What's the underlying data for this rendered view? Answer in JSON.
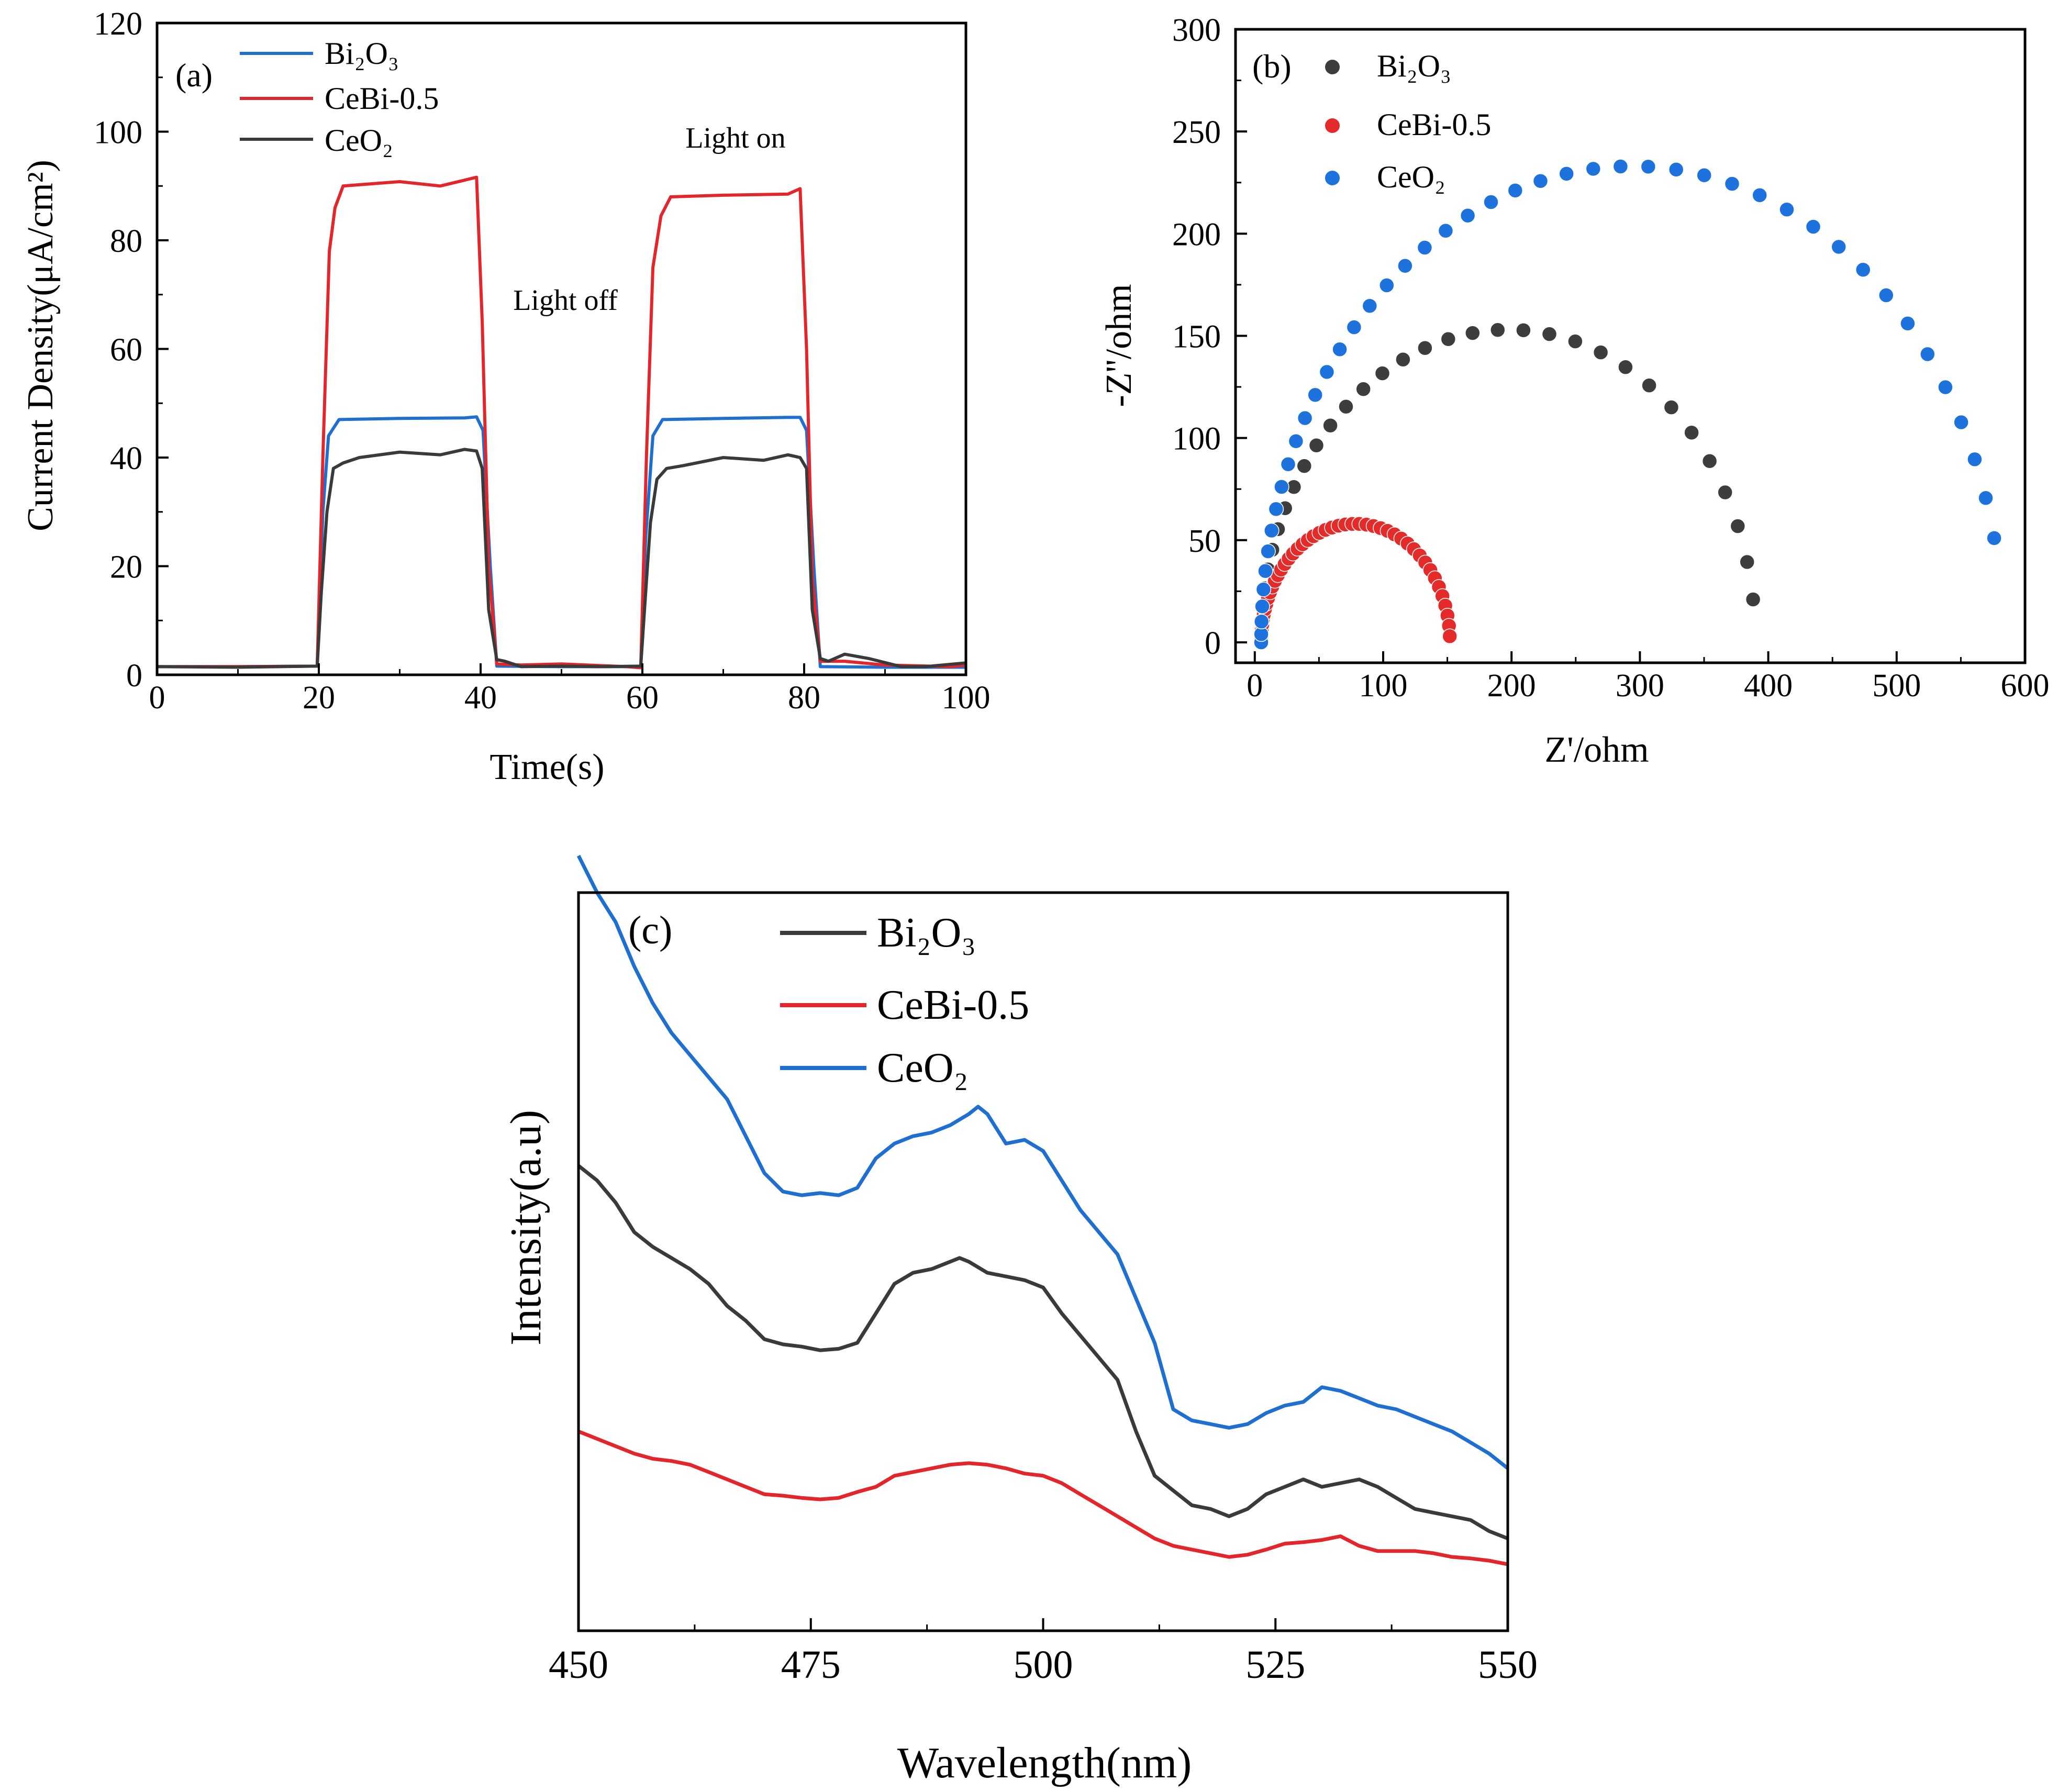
{
  "colors": {
    "bi2o3_line": "#1f6fd1",
    "cebi_line": "#e3262b",
    "ceo2_line": "#3a3a3a",
    "bi2o3_marker": "#3d3d3d",
    "cebi_marker": "#e52a2a",
    "ceo2_marker": "#1e72dd"
  },
  "chart_data": [
    {
      "type": "line",
      "panel_label": "(a)",
      "xlabel": "Time(s)",
      "ylabel": "Current Density(μA/cm²)",
      "xlim": [
        0,
        100
      ],
      "ylim": [
        0,
        120
      ],
      "xticks": [
        "0",
        "20",
        "40",
        "60",
        "80",
        "100"
      ],
      "yticks": [
        "0",
        "20",
        "40",
        "60",
        "80",
        "100",
        "120"
      ],
      "legend": [
        "Bi₂O₃",
        "CeBi-0.5",
        "CeO₂"
      ],
      "legend_position": "top-left",
      "annotations": {
        "light_on": "Light on",
        "light_off": "Light off"
      },
      "series": [
        {
          "name": "Bi₂O₃",
          "color": "#1f6fd1",
          "x": [
            0,
            10,
            19.8,
            20.5,
            21.2,
            22.5,
            30,
            38,
            39.5,
            40.3,
            41.2,
            42,
            50,
            59.8,
            60.4,
            61.3,
            62.5,
            70,
            78,
            79.5,
            80.3,
            81.2,
            82,
            90,
            100
          ],
          "y": [
            1.5,
            1.5,
            1.6,
            30,
            44,
            47,
            47.2,
            47.3,
            47.5,
            45,
            20,
            1.6,
            1.5,
            1.5,
            25,
            44,
            47,
            47.2,
            47.4,
            47.4,
            45,
            20,
            1.5,
            1.4,
            1.4
          ]
        },
        {
          "name": "CeBi-0.5",
          "color": "#e3262b",
          "x": [
            0,
            10,
            19.8,
            20.5,
            21.3,
            22,
            23,
            30,
            35,
            39.5,
            40.2,
            41,
            42,
            45,
            50,
            58,
            59.8,
            60.5,
            61.3,
            62.3,
            63.5,
            70,
            78,
            79.5,
            80.3,
            81,
            82,
            85,
            90,
            98,
            100
          ],
          "y": [
            1.5,
            1.5,
            1.6,
            40,
            78,
            86,
            90,
            90.8,
            90,
            91.6,
            65,
            20,
            2.0,
            1.8,
            2.0,
            1.5,
            1.3,
            40,
            75,
            84.5,
            88,
            88.3,
            88.5,
            89.5,
            60,
            18,
            2.5,
            2.5,
            1.8,
            1.5,
            1.8
          ]
        },
        {
          "name": "CeO₂",
          "color": "#3a3a3a",
          "x": [
            0,
            10,
            19.8,
            20.3,
            21,
            21.8,
            23,
            25,
            30,
            35,
            38,
            39.5,
            40.2,
            41,
            42,
            43,
            45,
            50,
            55,
            59.8,
            60.4,
            61,
            61.8,
            63,
            65,
            70,
            75,
            78,
            79.5,
            80.3,
            81,
            82,
            83,
            85,
            88,
            92,
            95,
            100
          ],
          "y": [
            1.5,
            1.4,
            1.6,
            15,
            30,
            38,
            39,
            40,
            41,
            40.5,
            41.5,
            41.2,
            38,
            12,
            2.8,
            2.5,
            1.5,
            1.6,
            1.5,
            1.6,
            15,
            28,
            36,
            38,
            38.5,
            40,
            39.5,
            40.5,
            40,
            38,
            12,
            3,
            2.5,
            3.8,
            3,
            1.5,
            1.5,
            2.2
          ]
        }
      ]
    },
    {
      "type": "scatter",
      "panel_label": "(b)",
      "xlabel": "Z'/ohm",
      "ylabel": "-Z''/ohm",
      "xlim": [
        -15,
        600
      ],
      "ylim": [
        -10,
        300
      ],
      "xticks": [
        "0",
        "100",
        "200",
        "300",
        "400",
        "500",
        "600"
      ],
      "yticks": [
        "0",
        "50",
        "100",
        "150",
        "200",
        "250",
        "300"
      ],
      "legend": [
        "Bi₂O₃",
        "CeBi-0.5",
        "CeO₂"
      ],
      "legend_position": "top-left",
      "series": [
        {
          "name": "Bi₂O₃",
          "color": "#3d3d3d",
          "shape": "arc",
          "x0": 5,
          "x1": 390,
          "peak": 153,
          "end_y": 21,
          "points": 34
        },
        {
          "name": "CeBi-0.5",
          "color": "#e52a2a",
          "shape": "arc",
          "x0": 5,
          "x1": 152,
          "peak": 58,
          "end_y": 3,
          "points": 48
        },
        {
          "name": "CeO₂",
          "color": "#1e72dd",
          "shape": "arc",
          "x0": 5,
          "x1": 583,
          "peak": 233,
          "end_y": 51,
          "points": 46
        }
      ]
    },
    {
      "type": "line",
      "panel_label": "(c)",
      "xlabel": "Wavelength(nm)",
      "ylabel": "Intensity(a.u)",
      "xlim": [
        450,
        550
      ],
      "ylim": [
        0,
        100
      ],
      "xticks": [
        "450",
        "475",
        "500",
        "525",
        "550"
      ],
      "yticks": [],
      "legend": [
        "Bi₂O₃",
        "CeBi-0.5",
        "CeO₂"
      ],
      "legend_position": "top",
      "series": [
        {
          "name": "Bi₂O₃",
          "color": "#3a3a3a",
          "x": [
            450,
            452,
            454,
            456,
            458,
            460,
            462,
            464,
            466,
            468,
            470,
            472,
            474,
            476,
            478,
            480,
            482,
            484,
            486,
            488,
            490,
            491,
            492,
            494,
            496,
            498,
            500,
            502,
            504,
            506,
            508,
            510,
            512,
            514,
            516,
            518,
            520,
            522,
            524,
            526,
            528,
            530,
            532,
            534,
            536,
            538,
            540,
            542,
            544,
            546,
            548,
            550
          ],
          "y": [
            63,
            61,
            58,
            54,
            52,
            50.5,
            49,
            47,
            44,
            42,
            39.5,
            38.8,
            38.5,
            38,
            38.2,
            39,
            43,
            47,
            48.5,
            49,
            50,
            50.5,
            50,
            48.5,
            48,
            47.5,
            46.5,
            43,
            40,
            37,
            34,
            27,
            21,
            19,
            17,
            16.5,
            15.5,
            16.5,
            18.5,
            19.5,
            20.5,
            19.5,
            20,
            20.5,
            19.5,
            18,
            16.5,
            16,
            15.5,
            15,
            13.5,
            12.5
          ]
        },
        {
          "name": "CeBi-0.5",
          "color": "#e3262b",
          "x": [
            450,
            452,
            454,
            456,
            458,
            460,
            462,
            464,
            466,
            468,
            470,
            472,
            474,
            476,
            478,
            480,
            482,
            484,
            486,
            488,
            490,
            492,
            494,
            496,
            498,
            500,
            502,
            504,
            506,
            508,
            510,
            512,
            514,
            516,
            518,
            520,
            522,
            524,
            526,
            528,
            530,
            532,
            534,
            536,
            538,
            540,
            542,
            544,
            546,
            548,
            550
          ],
          "y": [
            27,
            26,
            25,
            24,
            23.3,
            23,
            22.5,
            21.5,
            20.5,
            19.5,
            18.5,
            18.3,
            18,
            17.8,
            18,
            18.8,
            19.5,
            21,
            21.5,
            22,
            22.5,
            22.7,
            22.5,
            22,
            21.3,
            21,
            20,
            18.5,
            17,
            15.5,
            14,
            12.5,
            11.5,
            11,
            10.5,
            10,
            10.3,
            11,
            11.8,
            12,
            12.3,
            12.8,
            11.5,
            10.8,
            10.8,
            10.8,
            10.5,
            10,
            9.8,
            9.5,
            9
          ]
        },
        {
          "name": "CeO₂",
          "color": "#1f6fd1",
          "x": [
            450,
            452,
            454,
            456,
            458,
            460,
            462,
            464,
            466,
            468,
            470,
            472,
            474,
            476,
            478,
            480,
            482,
            484,
            486,
            488,
            490,
            492,
            493,
            494,
            496,
            498,
            500,
            502,
            504,
            506,
            508,
            510,
            512,
            514,
            516,
            518,
            520,
            522,
            524,
            526,
            528,
            530,
            532,
            534,
            536,
            538,
            540,
            542,
            544,
            546,
            548,
            550
          ],
          "y": [
            105,
            100,
            96,
            90,
            85,
            81,
            78,
            75,
            72,
            67,
            62,
            59.5,
            59,
            59.3,
            59,
            60,
            64,
            66,
            67,
            67.5,
            68.5,
            70,
            71,
            70,
            66,
            66.5,
            65,
            61,
            57,
            54,
            51,
            45,
            39,
            30,
            28.5,
            28,
            27.5,
            28,
            29.5,
            30.5,
            31,
            33,
            32.5,
            31.5,
            30.5,
            30,
            29,
            28,
            27,
            25.5,
            24,
            22
          ]
        }
      ]
    }
  ]
}
